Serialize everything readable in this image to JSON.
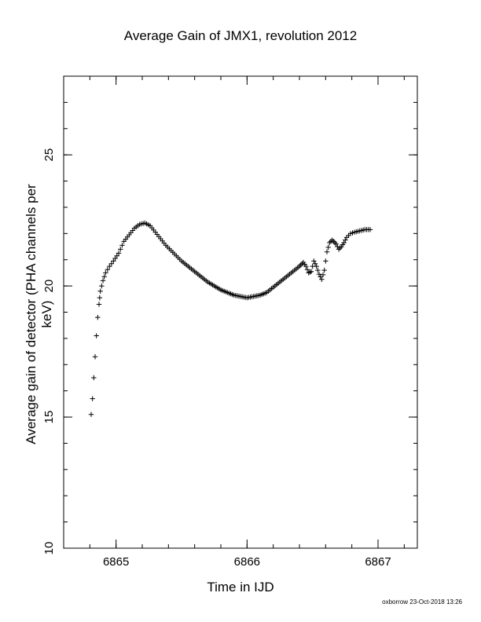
{
  "chart_data": {
    "type": "scatter",
    "title": "Average Gain of JMX1, revolution 2012",
    "xlabel": "Time in IJD",
    "ylabel": "Average gain of detector (PHA channels per keV)",
    "xlim": [
      6864.6,
      6867.3
    ],
    "ylim": [
      10,
      28
    ],
    "x_ticks": [
      6865,
      6866,
      6867
    ],
    "y_ticks": [
      10,
      15,
      20,
      25
    ],
    "marker": "plus",
    "grid": false,
    "legend": "none",
    "series": [
      {
        "x": [
          6864.81,
          6864.82,
          6864.83,
          6864.84,
          6864.85,
          6864.86,
          6864.87,
          6864.88,
          6864.9,
          6864.92,
          6864.95,
          6864.98,
          6865.02,
          6865.06,
          6865.1,
          6865.14,
          6865.18,
          6865.22,
          6865.26,
          6865.3,
          6865.34,
          6865.38,
          6865.42,
          6865.46,
          6865.5,
          6865.55,
          6865.6,
          6865.65,
          6865.7,
          6865.75,
          6865.8,
          6865.85,
          6865.9,
          6865.95,
          6866.0,
          6866.05,
          6866.1,
          6866.15,
          6866.2,
          6866.25,
          6866.3,
          6866.35,
          6866.4,
          6866.43,
          6866.45,
          6866.47,
          6866.49,
          6866.51,
          6866.53,
          6866.55,
          6866.57,
          6866.59,
          6866.61,
          6866.63,
          6866.65,
          6866.68,
          6866.7,
          6866.72,
          6866.74,
          6866.76,
          6866.79,
          6866.82,
          6866.86,
          6866.9,
          6866.94
        ],
        "y": [
          15.1,
          15.7,
          16.5,
          17.3,
          18.1,
          18.8,
          19.3,
          19.8,
          20.2,
          20.5,
          20.75,
          20.95,
          21.25,
          21.7,
          21.95,
          22.2,
          22.35,
          22.4,
          22.3,
          22.05,
          21.8,
          21.55,
          21.35,
          21.15,
          20.95,
          20.75,
          20.55,
          20.35,
          20.15,
          20.0,
          19.85,
          19.75,
          19.65,
          19.6,
          19.55,
          19.6,
          19.65,
          19.75,
          19.95,
          20.15,
          20.35,
          20.55,
          20.75,
          20.9,
          20.75,
          20.5,
          20.55,
          20.95,
          20.75,
          20.45,
          20.25,
          20.6,
          21.3,
          21.65,
          21.75,
          21.6,
          21.4,
          21.5,
          21.65,
          21.85,
          22.0,
          22.05,
          22.1,
          22.15,
          22.15
        ]
      }
    ]
  },
  "footer": "oxborrow 23-Oct-2018 13:26"
}
